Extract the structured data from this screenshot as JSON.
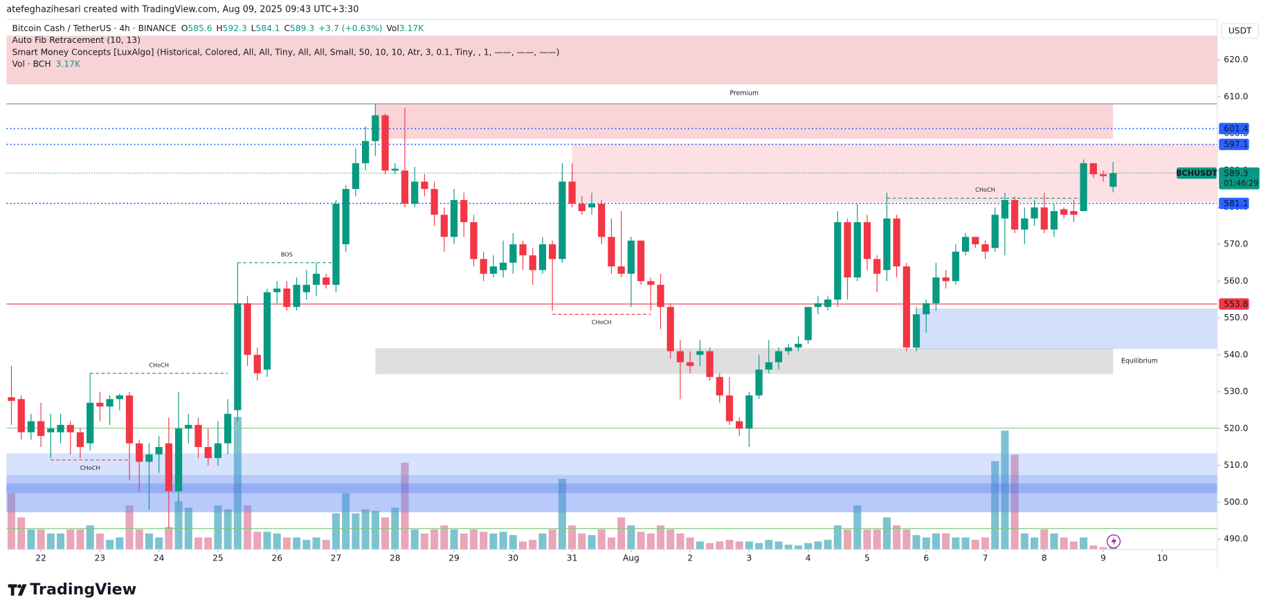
{
  "header": {
    "attribution": "atefeghazihesari created with TradingView.com, Aug 09, 2025 09:43 UTC+3:30"
  },
  "legend": {
    "symbol": "Bitcoin Cash / TetherUS · 4h · BINANCE",
    "o": "O",
    "h": "H",
    "l": "L",
    "c": "C",
    "change": "+3.7 (+0.63%)",
    "vol": "Vol",
    "vol_value": "3.17K",
    "indicators": [
      "Auto Fib Retracement (10, 13)",
      "Smart Money Concepts [LuxAlgo] (Historical, Colored, All, All, Tiny, All, All, Small, 50, 10, 10, Atr, 3, 0.1, Tiny, , 1, ——, ——, ——)"
    ],
    "volume_name": "Vol · BCH",
    "volume_value": "3.17K"
  },
  "chart_data": {
    "type": "candlestick",
    "currency": "USDT",
    "symbol_tag": "BCHUSDT",
    "countdown": "01:46:29",
    "up_color": "#089981",
    "down_color": "#f23645",
    "volume_up_color": "#7cc3cf",
    "volume_down_color": "#e8a6b8",
    "open": [
      528.5,
      528,
      519,
      522,
      519,
      519,
      521,
      519,
      516,
      527,
      526,
      528,
      529,
      516,
      511,
      513,
      516,
      503,
      520,
      521,
      515,
      512,
      516,
      525,
      554,
      540,
      536,
      557,
      558,
      553,
      557,
      559,
      561,
      559,
      570,
      585,
      592,
      598,
      605,
      590,
      590,
      581,
      587,
      585,
      578,
      572,
      582,
      576,
      566,
      562,
      563,
      565,
      570,
      567,
      563,
      570,
      566,
      587,
      581,
      580,
      581,
      572,
      564,
      562,
      571,
      560,
      559,
      553,
      541,
      538,
      540,
      541,
      534,
      529,
      522,
      520,
      529,
      536,
      538,
      541,
      542,
      544,
      553,
      553,
      555,
      576,
      561,
      576,
      566,
      563,
      577,
      564,
      542,
      551,
      554,
      561,
      560,
      568,
      572,
      570,
      569,
      577,
      582,
      574,
      577,
      580,
      574,
      579.5,
      579,
      579,
      592,
      589,
      585.6
    ],
    "high": [
      537,
      529,
      524,
      527,
      524,
      524,
      522,
      520,
      535,
      530,
      529,
      529.5,
      530,
      517,
      516,
      518,
      523,
      530,
      524,
      523,
      520,
      522,
      528,
      565,
      556,
      542,
      558,
      560,
      560,
      561,
      563,
      565,
      562,
      582,
      586,
      596,
      602,
      608,
      605.5,
      592,
      607,
      591,
      589,
      587,
      580,
      585,
      584,
      578,
      568,
      567,
      571,
      573,
      571,
      569,
      572,
      571,
      592,
      592,
      583,
      584,
      582,
      577,
      579,
      572,
      571,
      561,
      562,
      554,
      544,
      541,
      544,
      542,
      535,
      534,
      523,
      530,
      540,
      544,
      542,
      543,
      545,
      553,
      556,
      556,
      579,
      577,
      581,
      578,
      567,
      584,
      578,
      565,
      553,
      555,
      565,
      563,
      570,
      573,
      572,
      571,
      580,
      584,
      583,
      580,
      582,
      584,
      581,
      580,
      582,
      593,
      592,
      590,
      592.3
    ],
    "low": [
      521,
      517,
      517,
      515,
      512,
      516,
      513,
      512,
      514,
      522,
      521,
      525,
      506,
      503,
      498,
      508,
      493,
      500,
      516,
      512,
      510,
      510,
      513,
      522,
      537,
      533,
      534,
      554,
      552,
      552,
      555,
      556,
      558,
      557,
      568,
      583,
      590,
      594,
      589,
      589,
      580,
      580,
      583,
      575,
      568,
      570,
      572,
      564,
      560,
      561,
      561,
      562,
      563,
      559,
      562,
      552,
      565,
      580,
      578,
      578,
      570,
      562,
      561,
      553,
      559,
      552,
      547,
      539,
      528,
      535,
      537,
      533,
      527,
      521,
      518,
      515,
      528,
      535,
      536,
      540,
      541,
      543,
      551,
      552,
      553,
      555,
      560,
      563,
      557,
      560,
      561,
      541,
      541,
      546,
      552,
      558,
      559,
      567,
      569,
      566,
      568,
      567,
      573,
      570,
      575,
      573,
      572,
      577,
      576,
      579,
      588,
      587,
      584.1
    ],
    "close": [
      527.5,
      519,
      522,
      518,
      520,
      521,
      519,
      515,
      527,
      526,
      528,
      529,
      516,
      511,
      513,
      515,
      503,
      520,
      521,
      515,
      512,
      516,
      524,
      554,
      540,
      535,
      557,
      558,
      553,
      559,
      559,
      562,
      559,
      581,
      585,
      592,
      598,
      605,
      590,
      590.5,
      581,
      587,
      585,
      578,
      572,
      582,
      576,
      566,
      562,
      564,
      565,
      570,
      567,
      563,
      570,
      566,
      587,
      581,
      579,
      581,
      572,
      564,
      562,
      571,
      560,
      559,
      553,
      541,
      538,
      537,
      541,
      534,
      529,
      522,
      520,
      529,
      536,
      538,
      541,
      542,
      543,
      553,
      554,
      555,
      576,
      561,
      576,
      566,
      562,
      577,
      564,
      542,
      551,
      554,
      561,
      560,
      568,
      572,
      570,
      568,
      578,
      582,
      574,
      577,
      580,
      574,
      579,
      578,
      578,
      592,
      589,
      588.5,
      589.3
    ],
    "volume": [
      70,
      40,
      25,
      25,
      20,
      20,
      25,
      25,
      30,
      20,
      12,
      15,
      55,
      25,
      20,
      15,
      28,
      60,
      52,
      15,
      15,
      55,
      50,
      165,
      55,
      22,
      22,
      20,
      15,
      15,
      12,
      15,
      12,
      45,
      70,
      45,
      50,
      48,
      40,
      52,
      108,
      25,
      20,
      25,
      30,
      25,
      20,
      25,
      22,
      20,
      22,
      18,
      10,
      12,
      20,
      25,
      88,
      30,
      20,
      18,
      25,
      15,
      40,
      30,
      22,
      20,
      30,
      25,
      20,
      15,
      10,
      8,
      10,
      12,
      10,
      10,
      8,
      12,
      10,
      6,
      5,
      8,
      10,
      12,
      30,
      25,
      55,
      25,
      25,
      40,
      30,
      25,
      18,
      15,
      20,
      20,
      15,
      15,
      12,
      15,
      110,
      148,
      118,
      20,
      15,
      25,
      20,
      15,
      10,
      15,
      5,
      3,
      3.17
    ],
    "xlim": [
      -0.5,
      122.6
    ],
    "xticks": [
      {
        "value": 3,
        "label": "22"
      },
      {
        "value": 9,
        "label": "23"
      },
      {
        "value": 15,
        "label": "24"
      },
      {
        "value": 21,
        "label": "25"
      },
      {
        "value": 27,
        "label": "26"
      },
      {
        "value": 33,
        "label": "27"
      },
      {
        "value": 39,
        "label": "28"
      },
      {
        "value": 45,
        "label": "29"
      },
      {
        "value": 51,
        "label": "30"
      },
      {
        "value": 57,
        "label": "31"
      },
      {
        "value": 63,
        "label": "Aug"
      },
      {
        "value": 69,
        "label": "2"
      },
      {
        "value": 75,
        "label": "3"
      },
      {
        "value": 81,
        "label": "4"
      },
      {
        "value": 87,
        "label": "5"
      },
      {
        "value": 93,
        "label": "6"
      },
      {
        "value": 99,
        "label": "7"
      },
      {
        "value": 105,
        "label": "8"
      },
      {
        "value": 111,
        "label": "9"
      },
      {
        "value": 117,
        "label": "10"
      }
    ],
    "ylim": [
      487.2,
      631
    ],
    "yticks": [
      {
        "value": 490,
        "label": "490.0"
      },
      {
        "value": 500,
        "label": "500.0"
      },
      {
        "value": 510,
        "label": "510.0"
      },
      {
        "value": 520,
        "label": "520.0"
      },
      {
        "value": 530,
        "label": "530.0"
      },
      {
        "value": 540,
        "label": "540.0"
      },
      {
        "value": 550,
        "label": "550.0"
      },
      {
        "value": 560,
        "label": "560.0"
      },
      {
        "value": 570,
        "label": "570.0"
      },
      {
        "value": 580,
        "label": "580.0"
      },
      {
        "value": 590,
        "label": "590.0"
      },
      {
        "value": 600,
        "label": "600.0"
      },
      {
        "value": 610,
        "label": "610.0"
      },
      {
        "value": 620,
        "label": "620.0"
      }
    ],
    "zones": [
      {
        "top": 626.6,
        "bottom": 613.4,
        "x0": -0.5,
        "x1": 122.6,
        "color": "rgba(230,120,130,0.33)"
      },
      {
        "top": 608.1,
        "bottom": 598.6,
        "x0": 37,
        "x1": 112,
        "color": "rgba(247,160,168,0.45)",
        "label": "Premium",
        "label_color": "#f23645"
      },
      {
        "top": 597.2,
        "bottom": 581.4,
        "x0": 57,
        "x1": 122.6,
        "color": "rgba(247,160,168,0.32)"
      },
      {
        "top": 541.8,
        "bottom": 534.8,
        "x0": 37,
        "x1": 112,
        "color": "rgba(150,150,155,0.3)",
        "label": "Equilibrium",
        "label_color": "#9598a1"
      },
      {
        "top": 552.6,
        "bottom": 541.6,
        "x0": 92,
        "x1": 122.6,
        "color": "rgba(120,160,240,0.32)"
      },
      {
        "top": 513.3,
        "bottom": 497.3,
        "x0": -0.5,
        "x1": 122.6,
        "color": "rgba(110,150,245,0.28)"
      },
      {
        "top": 507.4,
        "bottom": 497.3,
        "x0": -0.5,
        "x1": 122.6,
        "color": "rgba(90,130,240,0.25)"
      },
      {
        "top": 505.1,
        "bottom": 502.5,
        "x0": -0.5,
        "x1": 122.6,
        "color": "rgba(70,110,235,0.3)"
      }
    ],
    "levels": [
      {
        "value": 608.1,
        "color": "#7a83b0",
        "style": "solid",
        "tag": false
      },
      {
        "value": 601.4,
        "color": "#2962ff",
        "style": "dotted",
        "tag": true
      },
      {
        "value": 597.1,
        "color": "#2962ff",
        "style": "dotted",
        "tag": true
      },
      {
        "value": 581.1,
        "color": "#2962ff",
        "style": "dotted",
        "tag": true
      },
      {
        "value": 553.8,
        "color": "#f23645",
        "style": "solid",
        "tag": true
      },
      {
        "value": 520.1,
        "color": "#81c784",
        "style": "solid",
        "tag": false
      },
      {
        "value": 492.9,
        "color": "#81c784",
        "style": "solid",
        "tag": false
      }
    ],
    "structures": [
      {
        "label": "CHoCH",
        "level": 511.5,
        "x0": 4,
        "x1": 12,
        "color": "#f23645",
        "position": "below"
      },
      {
        "label": "CHoCH",
        "level": 535,
        "x0": 8,
        "x1": 22,
        "color": "#089981",
        "position": "above"
      },
      {
        "label": "BOS",
        "level": 565,
        "x0": 23,
        "x1": 33,
        "color": "#089981",
        "position": "above"
      },
      {
        "label": "CHoCH",
        "level": 551,
        "x0": 55,
        "x1": 65,
        "color": "#f23645",
        "position": "below"
      },
      {
        "label": "CHoCH",
        "level": 582.5,
        "x0": 89,
        "x1": 109,
        "color": "#089981",
        "position": "above"
      }
    ]
  },
  "footer": {
    "brand": "TradingView"
  }
}
